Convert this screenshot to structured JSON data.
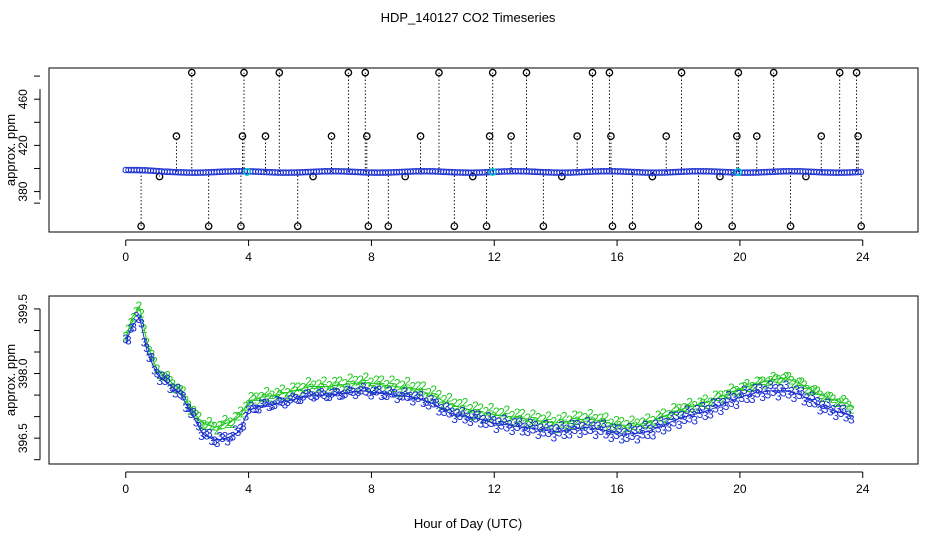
{
  "figure": {
    "title": "HDP_140127  CO2 Timeseries",
    "xlabel": "Hour of Day (UTC)"
  },
  "colors": {
    "axis": "#000000",
    "outlier_marker": "#000000",
    "series_blue": "#1a2fd0",
    "series_green": "#22c722",
    "highlight": "#00c8c8"
  },
  "chart_data": [
    {
      "type": "scatter",
      "panel": "top",
      "ylabel": "approx. ppm",
      "xlim": [
        -2.5,
        25.8
      ],
      "ylim": [
        345,
        487
      ],
      "x_ticks": [
        0,
        4,
        8,
        12,
        16,
        20,
        24
      ],
      "y_ticks": [
        380,
        420,
        460
      ],
      "grid": false,
      "baseline_ppm": 397,
      "outliers_high": [
        2.15,
        3.85,
        5.0,
        7.25,
        7.8,
        10.2,
        11.95,
        13.05,
        15.2,
        15.75,
        18.1,
        19.95,
        21.1,
        23.25,
        23.8
      ],
      "outliers_mid": [
        1.65,
        3.8,
        4.55,
        6.7,
        7.85,
        9.6,
        11.85,
        12.55,
        14.7,
        15.8,
        17.6,
        19.9,
        20.55,
        22.65,
        23.85
      ],
      "outliers_low": [
        0.5,
        2.7,
        3.75,
        5.6,
        7.9,
        8.55,
        10.7,
        11.75,
        13.6,
        15.85,
        16.5,
        18.65,
        19.75,
        21.65,
        23.95
      ],
      "outliers_near": [
        1.1,
        6.1,
        9.1,
        11.3,
        14.2,
        17.15,
        19.35,
        22.15
      ],
      "high_value": 483,
      "mid_value": 428,
      "low_value": 350,
      "near_value": 393
    },
    {
      "type": "line",
      "panel": "bottom",
      "ylabel": "approx. ppm",
      "xlim": [
        -2.5,
        25.8
      ],
      "ylim": [
        395.9,
        399.8
      ],
      "x_ticks": [
        0,
        4,
        8,
        12,
        16,
        20,
        24
      ],
      "y_ticks": [
        396.5,
        398.0,
        399.5
      ],
      "grid": false,
      "marker_labels": [
        "2",
        "3"
      ],
      "x_range": [
        0,
        23.7
      ],
      "series": [
        {
          "marker": "2",
          "x": [
            0.0,
            0.2,
            0.45,
            0.7,
            1.0,
            1.4,
            1.8,
            2.2,
            2.5,
            2.9,
            3.3,
            3.7,
            4.0,
            4.4,
            4.9,
            5.5,
            6.0,
            6.6,
            7.2,
            7.7,
            8.2,
            8.8,
            9.4,
            10.0,
            10.5,
            11.0,
            11.5,
            12.0,
            12.5,
            13.0,
            13.5,
            14.0,
            14.5,
            15.0,
            15.5,
            16.0,
            16.5,
            17.0,
            17.5,
            18.0,
            18.5,
            19.0,
            19.5,
            20.0,
            20.5,
            21.0,
            21.5,
            22.0,
            22.5,
            23.0,
            23.5,
            23.7
          ],
          "values": [
            398.8,
            399.3,
            399.55,
            398.7,
            398.1,
            397.85,
            397.6,
            397.1,
            396.85,
            396.75,
            396.85,
            397.0,
            397.35,
            397.45,
            397.5,
            397.6,
            397.7,
            397.7,
            397.75,
            397.8,
            397.75,
            397.7,
            397.65,
            397.5,
            397.3,
            397.2,
            397.1,
            397.05,
            397.0,
            396.95,
            396.9,
            396.85,
            396.9,
            396.95,
            396.9,
            396.8,
            396.8,
            396.85,
            397.0,
            397.15,
            397.25,
            397.35,
            397.5,
            397.65,
            397.75,
            397.85,
            397.9,
            397.75,
            397.55,
            397.4,
            397.3,
            397.2
          ]
        },
        {
          "marker": "3",
          "x": [
            0.0,
            0.2,
            0.45,
            0.7,
            1.0,
            1.4,
            1.8,
            2.2,
            2.5,
            2.9,
            3.3,
            3.7,
            4.0,
            4.4,
            4.9,
            5.5,
            6.0,
            6.6,
            7.2,
            7.7,
            8.2,
            8.8,
            9.4,
            10.0,
            10.5,
            11.0,
            11.5,
            12.0,
            12.5,
            13.0,
            13.5,
            14.0,
            14.5,
            15.0,
            15.5,
            16.0,
            16.5,
            17.0,
            17.5,
            18.0,
            18.5,
            19.0,
            19.5,
            20.0,
            20.5,
            21.0,
            21.5,
            22.0,
            22.5,
            23.0,
            23.5,
            23.7
          ],
          "values": [
            398.7,
            399.1,
            399.3,
            398.5,
            398.0,
            397.75,
            397.5,
            397.0,
            396.6,
            396.45,
            396.5,
            396.65,
            397.15,
            397.25,
            397.3,
            397.4,
            397.5,
            397.5,
            397.55,
            397.6,
            397.55,
            397.5,
            397.45,
            397.3,
            397.1,
            397.0,
            396.95,
            396.85,
            396.8,
            396.75,
            396.7,
            396.65,
            396.7,
            396.75,
            396.7,
            396.6,
            396.6,
            396.65,
            396.8,
            396.95,
            397.05,
            397.15,
            397.3,
            397.45,
            397.55,
            397.6,
            397.6,
            397.5,
            397.3,
            397.15,
            397.05,
            397.0
          ]
        }
      ]
    }
  ]
}
